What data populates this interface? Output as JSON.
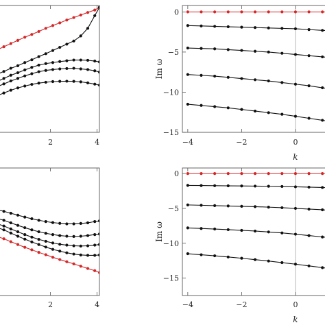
{
  "chart_data": [
    {
      "type": "line",
      "panel": "top-left",
      "xlabel": "",
      "ylabel": "",
      "xlim": [
        -0.4,
        4.1
      ],
      "ylim": [
        0,
        10
      ],
      "xticks": [
        2,
        4
      ],
      "yticks": [],
      "colors": {
        "highlight": "#d62728",
        "default": "#111111"
      },
      "series": [
        {
          "color": "highlight",
          "x": [
            -0.4,
            0,
            0.3,
            0.6,
            0.9,
            1.2,
            1.5,
            1.8,
            2.1,
            2.4,
            2.7,
            3.0,
            3.3,
            3.6,
            3.9,
            4.1
          ],
          "y": [
            6.4,
            6.75,
            7.0,
            7.25,
            7.5,
            7.72,
            7.95,
            8.2,
            8.42,
            8.63,
            8.85,
            9.05,
            9.25,
            9.45,
            9.64,
            9.85
          ]
        },
        {
          "color": "default",
          "x": [
            -0.4,
            0,
            0.3,
            0.6,
            0.9,
            1.2,
            1.5,
            1.8,
            2.1,
            2.4,
            2.7,
            3.0,
            3.3,
            3.6,
            3.9,
            4.1
          ],
          "y": [
            4.5,
            4.8,
            5.05,
            5.25,
            5.5,
            5.72,
            5.97,
            6.2,
            6.45,
            6.7,
            6.95,
            7.2,
            7.6,
            8.2,
            9.2,
            9.85
          ]
        },
        {
          "color": "default",
          "x": [
            -0.4,
            0,
            0.3,
            0.6,
            0.9,
            1.2,
            1.5,
            1.8,
            2.1,
            2.4,
            2.7,
            3.0,
            3.3,
            3.6,
            3.9,
            4.1
          ],
          "y": [
            3.9,
            4.25,
            4.5,
            4.7,
            4.92,
            5.12,
            5.3,
            5.42,
            5.5,
            5.58,
            5.64,
            5.7,
            5.7,
            5.68,
            5.62,
            5.55
          ]
        },
        {
          "color": "default",
          "x": [
            -0.4,
            0,
            0.3,
            0.6,
            0.9,
            1.2,
            1.5,
            1.8,
            2.1,
            2.4,
            2.7,
            3.0,
            3.3,
            3.6,
            3.9,
            4.1
          ],
          "y": [
            3.5,
            3.82,
            4.05,
            4.25,
            4.45,
            4.62,
            4.78,
            4.88,
            4.95,
            5.0,
            5.03,
            5.05,
            5.0,
            4.95,
            4.85,
            4.75
          ]
        },
        {
          "color": "default",
          "x": [
            -0.4,
            0,
            0.3,
            0.6,
            0.9,
            1.2,
            1.5,
            1.8,
            2.1,
            2.4,
            2.7,
            3.0,
            3.3,
            3.6,
            3.9,
            4.1
          ],
          "y": [
            2.8,
            3.1,
            3.32,
            3.5,
            3.65,
            3.78,
            3.88,
            3.95,
            4.0,
            4.02,
            4.03,
            4.02,
            3.98,
            3.9,
            3.8,
            3.72
          ]
        }
      ]
    },
    {
      "type": "line",
      "panel": "top-right",
      "xlabel": "k",
      "ylabel": "Im ω",
      "xlim": [
        -4.2,
        1.3
      ],
      "ylim": [
        -15,
        0.8
      ],
      "xticks": [
        -4,
        -2,
        0
      ],
      "yticks": [
        0,
        -5,
        -10,
        -15
      ],
      "vline": 0,
      "colors": {
        "highlight": "#d62728",
        "default": "#111111"
      },
      "series": [
        {
          "color": "highlight",
          "x": [
            -4,
            -3.5,
            -3,
            -2.5,
            -2,
            -1.5,
            -1,
            -0.5,
            0,
            0.5,
            1,
            1.3
          ],
          "y": [
            0,
            0,
            0,
            0,
            0,
            0,
            0,
            0,
            0,
            0,
            0,
            0
          ]
        },
        {
          "color": "default",
          "x": [
            -4,
            -3.5,
            -3,
            -2.5,
            -2,
            -1.5,
            -1,
            -0.5,
            0,
            0.5,
            1,
            1.3
          ],
          "y": [
            -1.7,
            -1.75,
            -1.8,
            -1.85,
            -1.9,
            -1.95,
            -2.0,
            -2.05,
            -2.1,
            -2.2,
            -2.3,
            -2.35
          ]
        },
        {
          "color": "default",
          "x": [
            -4,
            -3.5,
            -3,
            -2.5,
            -2,
            -1.5,
            -1,
            -0.5,
            0,
            0.5,
            1,
            1.3
          ],
          "y": [
            -4.5,
            -4.55,
            -4.6,
            -4.7,
            -4.8,
            -4.9,
            -5.0,
            -5.15,
            -5.3,
            -5.45,
            -5.6,
            -5.7
          ]
        },
        {
          "color": "default",
          "x": [
            -4,
            -3.5,
            -3,
            -2.5,
            -2,
            -1.5,
            -1,
            -0.5,
            0,
            0.5,
            1,
            1.3
          ],
          "y": [
            -7.8,
            -7.9,
            -8.0,
            -8.15,
            -8.3,
            -8.45,
            -8.6,
            -8.8,
            -9.0,
            -9.2,
            -9.45,
            -9.6
          ]
        },
        {
          "color": "default",
          "x": [
            -4,
            -3.5,
            -3,
            -2.5,
            -2,
            -1.5,
            -1,
            -0.5,
            0,
            0.5,
            1,
            1.3
          ],
          "y": [
            -11.5,
            -11.65,
            -11.8,
            -11.95,
            -12.15,
            -12.35,
            -12.55,
            -12.75,
            -13.0,
            -13.25,
            -13.5,
            -13.65
          ]
        }
      ]
    },
    {
      "type": "line",
      "panel": "bottom-left",
      "xlabel": "",
      "ylabel": "",
      "xlim": [
        -0.4,
        4.1
      ],
      "ylim": [
        0,
        10
      ],
      "xticks": [
        2,
        4
      ],
      "yticks": [],
      "colors": {
        "highlight": "#d62728",
        "default": "#111111"
      },
      "series": [
        {
          "color": "default",
          "x": [
            -0.4,
            0,
            0.3,
            0.6,
            0.9,
            1.2,
            1.5,
            1.8,
            2.1,
            2.4,
            2.7,
            3.0,
            3.3,
            3.6,
            3.9,
            4.1
          ],
          "y": [
            6.8,
            6.6,
            6.45,
            6.3,
            6.15,
            6.02,
            5.9,
            5.8,
            5.72,
            5.66,
            5.62,
            5.62,
            5.65,
            5.7,
            5.8,
            5.85
          ]
        },
        {
          "color": "default",
          "x": [
            -0.4,
            0,
            0.3,
            0.6,
            0.9,
            1.2,
            1.5,
            1.8,
            2.1,
            2.4,
            2.7,
            3.0,
            3.3,
            3.6,
            3.9,
            4.1
          ],
          "y": [
            6.1,
            5.9,
            5.7,
            5.5,
            5.32,
            5.15,
            5.0,
            4.88,
            4.78,
            4.7,
            4.65,
            4.63,
            4.65,
            4.7,
            4.78,
            4.82
          ]
        },
        {
          "color": "default",
          "x": [
            -0.4,
            0,
            0.3,
            0.6,
            0.9,
            1.2,
            1.5,
            1.8,
            2.1,
            2.4,
            2.7,
            3.0,
            3.3,
            3.6,
            3.9,
            4.1
          ],
          "y": [
            5.7,
            5.45,
            5.22,
            5.0,
            4.78,
            4.58,
            4.4,
            4.25,
            4.12,
            4.02,
            3.95,
            3.9,
            3.88,
            3.9,
            3.95,
            4.0
          ]
        },
        {
          "color": "default",
          "x": [
            -0.4,
            0,
            0.3,
            0.6,
            0.9,
            1.2,
            1.5,
            1.8,
            2.1,
            2.4,
            2.7,
            3.0,
            3.3,
            3.6,
            3.9,
            4.1
          ],
          "y": [
            5.4,
            5.15,
            4.9,
            4.65,
            4.42,
            4.2,
            4.0,
            3.8,
            3.62,
            3.48,
            3.35,
            3.25,
            3.18,
            3.15,
            3.15,
            3.18
          ]
        },
        {
          "color": "highlight",
          "x": [
            -0.4,
            0,
            0.3,
            0.6,
            0.9,
            1.2,
            1.5,
            1.8,
            2.1,
            2.4,
            2.7,
            3.0,
            3.3,
            3.6,
            3.9,
            4.1
          ],
          "y": [
            4.7,
            4.45,
            4.22,
            4.0,
            3.78,
            3.58,
            3.38,
            3.2,
            3.0,
            2.82,
            2.65,
            2.48,
            2.3,
            2.12,
            1.95,
            1.8
          ]
        }
      ]
    },
    {
      "type": "line",
      "panel": "bottom-right",
      "xlabel": "k",
      "ylabel": "Im ω",
      "xlim": [
        -4.2,
        1.3
      ],
      "ylim": [
        -17.5,
        0.8
      ],
      "xticks": [
        -4,
        -2,
        0
      ],
      "yticks": [
        0,
        -5,
        -10,
        -15
      ],
      "vline": 0,
      "colors": {
        "highlight": "#d62728",
        "default": "#111111"
      },
      "series": [
        {
          "color": "highlight",
          "x": [
            -4,
            -3.5,
            -3,
            -2.5,
            -2,
            -1.5,
            -1,
            -0.5,
            0,
            0.5,
            1,
            1.3
          ],
          "y": [
            0,
            0,
            0,
            0,
            0,
            0,
            0,
            0,
            0,
            0,
            0,
            0
          ]
        },
        {
          "color": "default",
          "x": [
            -4,
            -3.5,
            -3,
            -2.5,
            -2,
            -1.5,
            -1,
            -0.5,
            0,
            0.5,
            1,
            1.3
          ],
          "y": [
            -1.7,
            -1.72,
            -1.74,
            -1.76,
            -1.78,
            -1.8,
            -1.82,
            -1.85,
            -1.9,
            -1.95,
            -2.0,
            -2.05
          ]
        },
        {
          "color": "default",
          "x": [
            -4,
            -3.5,
            -3,
            -2.5,
            -2,
            -1.5,
            -1,
            -0.5,
            0,
            0.5,
            1,
            1.3
          ],
          "y": [
            -4.5,
            -4.55,
            -4.6,
            -4.65,
            -4.7,
            -4.75,
            -4.82,
            -4.9,
            -5.0,
            -5.1,
            -5.2,
            -5.3
          ]
        },
        {
          "color": "default",
          "x": [
            -4,
            -3.5,
            -3,
            -2.5,
            -2,
            -1.5,
            -1,
            -0.5,
            0,
            0.5,
            1,
            1.3
          ],
          "y": [
            -7.8,
            -7.88,
            -7.96,
            -8.05,
            -8.15,
            -8.25,
            -8.38,
            -8.52,
            -8.7,
            -8.9,
            -9.1,
            -9.2
          ]
        },
        {
          "color": "default",
          "x": [
            -4,
            -3.5,
            -3,
            -2.5,
            -2,
            -1.5,
            -1,
            -0.5,
            0,
            0.5,
            1,
            1.3
          ],
          "y": [
            -11.5,
            -11.65,
            -11.8,
            -11.97,
            -12.15,
            -12.35,
            -12.55,
            -12.78,
            -13.0,
            -13.25,
            -13.5,
            -13.65
          ]
        }
      ]
    }
  ]
}
